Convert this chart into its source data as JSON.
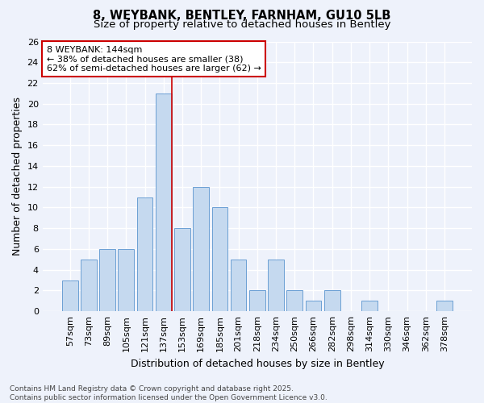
{
  "title": "8, WEYBANK, BENTLEY, FARNHAM, GU10 5LB",
  "subtitle": "Size of property relative to detached houses in Bentley",
  "xlabel": "Distribution of detached houses by size in Bentley",
  "ylabel": "Number of detached properties",
  "categories": [
    "57sqm",
    "73sqm",
    "89sqm",
    "105sqm",
    "121sqm",
    "137sqm",
    "153sqm",
    "169sqm",
    "185sqm",
    "201sqm",
    "218sqm",
    "234sqm",
    "250sqm",
    "266sqm",
    "282sqm",
    "298sqm",
    "314sqm",
    "330sqm",
    "346sqm",
    "362sqm",
    "378sqm"
  ],
  "values": [
    3,
    5,
    6,
    6,
    11,
    21,
    8,
    12,
    10,
    5,
    2,
    5,
    2,
    1,
    2,
    0,
    1,
    0,
    0,
    0,
    1
  ],
  "bar_color": "#c5d9ef",
  "bar_edge_color": "#6b9fd4",
  "highlight_bar_index": 5,
  "highlight_line_color": "#cc0000",
  "ylim": [
    0,
    26
  ],
  "yticks": [
    0,
    2,
    4,
    6,
    8,
    10,
    12,
    14,
    16,
    18,
    20,
    22,
    24,
    26
  ],
  "annotation_text": "8 WEYBANK: 144sqm\n← 38% of detached houses are smaller (38)\n62% of semi-detached houses are larger (62) →",
  "annotation_box_facecolor": "#ffffff",
  "annotation_box_edgecolor": "#cc0000",
  "background_color": "#eef2fb",
  "grid_color": "#ffffff",
  "footer_text": "Contains HM Land Registry data © Crown copyright and database right 2025.\nContains public sector information licensed under the Open Government Licence v3.0.",
  "title_fontsize": 10.5,
  "subtitle_fontsize": 9.5,
  "xlabel_fontsize": 9,
  "ylabel_fontsize": 9,
  "tick_fontsize": 8,
  "annotation_fontsize": 8,
  "footer_fontsize": 6.5
}
